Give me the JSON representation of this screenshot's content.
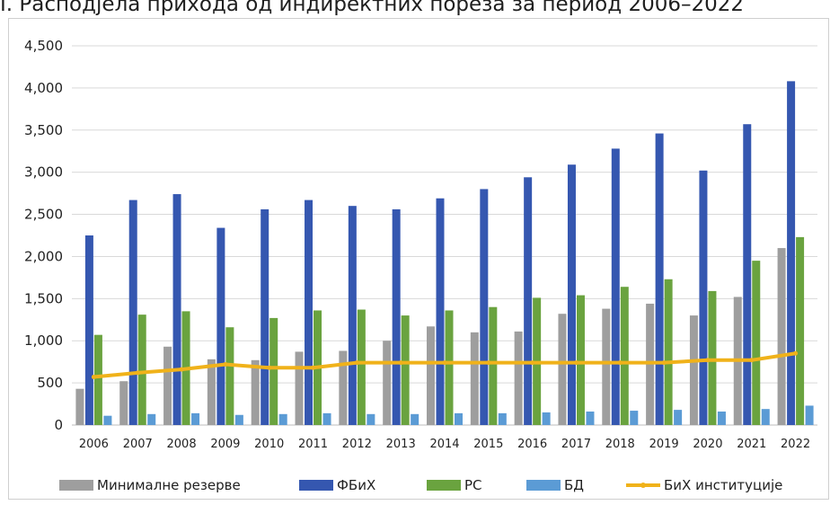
{
  "caption": "I. Расподјела прихода од индиректних пореза за период 2006–2022",
  "chart_data": {
    "type": "bar",
    "categories": [
      "2006",
      "2007",
      "2008",
      "2009",
      "2010",
      "2011",
      "2012",
      "2013",
      "2014",
      "2015",
      "2016",
      "2017",
      "2018",
      "2019",
      "2020",
      "2021",
      "2022"
    ],
    "ylim": [
      0,
      4500
    ],
    "yticks": [
      0,
      500,
      1000,
      1500,
      2000,
      2500,
      3000,
      3500,
      4000,
      4500
    ],
    "ytick_labels": [
      "0",
      "500",
      "1,000",
      "1,500",
      "2,000",
      "2,500",
      "3,000",
      "3,500",
      "4,000",
      "4,500"
    ],
    "grid": true,
    "legend_position": "bottom",
    "series": [
      {
        "name": "Минималне резерве",
        "kind": "bar",
        "color": "#9e9e9e",
        "values": [
          430,
          520,
          930,
          780,
          770,
          870,
          880,
          1000,
          1170,
          1100,
          1110,
          1320,
          1380,
          1440,
          1300,
          1520,
          2100
        ]
      },
      {
        "name": "ФБиХ",
        "kind": "bar",
        "color": "#3557b0",
        "values": [
          2250,
          2670,
          2740,
          2340,
          2560,
          2670,
          2600,
          2560,
          2690,
          2800,
          2940,
          3090,
          3280,
          3460,
          3020,
          3570,
          4080
        ]
      },
      {
        "name": "РС",
        "kind": "bar",
        "color": "#6aa33f",
        "values": [
          1070,
          1310,
          1350,
          1160,
          1270,
          1360,
          1370,
          1300,
          1360,
          1400,
          1510,
          1540,
          1640,
          1730,
          1590,
          1950,
          2230
        ]
      },
      {
        "name": "БД",
        "kind": "bar",
        "color": "#5b9bd5",
        "values": [
          110,
          130,
          140,
          120,
          130,
          140,
          130,
          130,
          140,
          140,
          150,
          160,
          170,
          180,
          160,
          190,
          230
        ]
      },
      {
        "name": "БиХ институције",
        "kind": "line",
        "color": "#f0b21a",
        "values": [
          570,
          620,
          660,
          720,
          680,
          680,
          740,
          740,
          740,
          740,
          740,
          740,
          740,
          740,
          770,
          770,
          850
        ]
      }
    ]
  }
}
